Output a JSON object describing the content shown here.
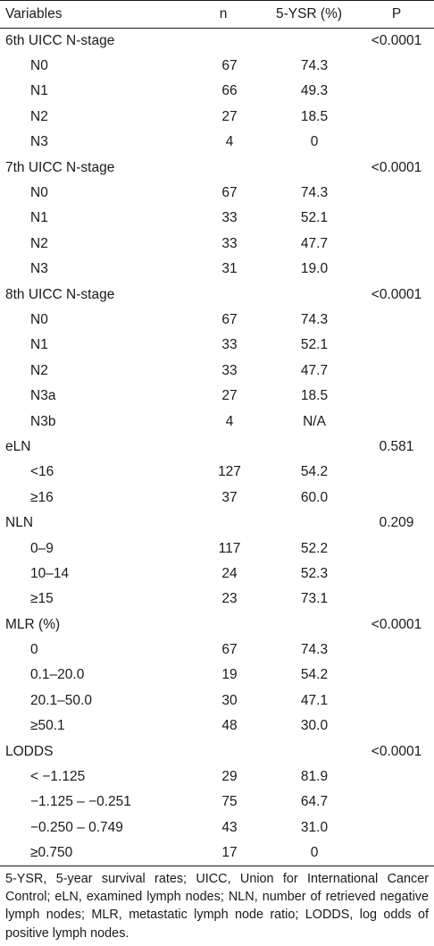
{
  "table": {
    "headers": [
      "Variables",
      "n",
      "5-YSR (%)",
      "P"
    ],
    "groups": [
      {
        "label": "6th UICC N-stage",
        "p": "<0.0001",
        "rows": [
          {
            "label": "N0",
            "n": "67",
            "ysr": "74.3"
          },
          {
            "label": "N1",
            "n": "66",
            "ysr": "49.3"
          },
          {
            "label": "N2",
            "n": "27",
            "ysr": "18.5"
          },
          {
            "label": "N3",
            "n": "4",
            "ysr": "0"
          }
        ]
      },
      {
        "label": "7th UICC N-stage",
        "p": "<0.0001",
        "rows": [
          {
            "label": "N0",
            "n": "67",
            "ysr": "74.3"
          },
          {
            "label": "N1",
            "n": "33",
            "ysr": "52.1"
          },
          {
            "label": "N2",
            "n": "33",
            "ysr": "47.7"
          },
          {
            "label": "N3",
            "n": "31",
            "ysr": "19.0"
          }
        ]
      },
      {
        "label": "8th UICC N-stage",
        "p": "<0.0001",
        "rows": [
          {
            "label": "N0",
            "n": "67",
            "ysr": "74.3"
          },
          {
            "label": "N1",
            "n": "33",
            "ysr": "52.1"
          },
          {
            "label": "N2",
            "n": "33",
            "ysr": "47.7"
          },
          {
            "label": "N3a",
            "n": "27",
            "ysr": "18.5"
          },
          {
            "label": "N3b",
            "n": "4",
            "ysr": "N/A"
          }
        ]
      },
      {
        "label": "eLN",
        "p": "0.581",
        "rows": [
          {
            "label": "<16",
            "n": "127",
            "ysr": "54.2"
          },
          {
            "label": "≥16",
            "n": "37",
            "ysr": "60.0"
          }
        ]
      },
      {
        "label": "NLN",
        "p": "0.209",
        "rows": [
          {
            "label": "0–9",
            "n": "117",
            "ysr": "52.2"
          },
          {
            "label": "10–14",
            "n": "24",
            "ysr": "52.3"
          },
          {
            "label": "≥15",
            "n": "23",
            "ysr": "73.1"
          }
        ]
      },
      {
        "label": "MLR (%)",
        "p": "<0.0001",
        "rows": [
          {
            "label": "0",
            "n": "67",
            "ysr": "74.3"
          },
          {
            "label": "0.1–20.0",
            "n": "19",
            "ysr": "54.2"
          },
          {
            "label": "20.1–50.0",
            "n": "30",
            "ysr": "47.1"
          },
          {
            "label": "≥50.1",
            "n": "48",
            "ysr": "30.0"
          }
        ]
      },
      {
        "label": "LODDS",
        "p": "<0.0001",
        "rows": [
          {
            "label": "< −1.125",
            "n": "29",
            "ysr": "81.9"
          },
          {
            "label": "−1.125 – −0.251",
            "n": "75",
            "ysr": "64.7"
          },
          {
            "label": "−0.250 – 0.749",
            "n": "43",
            "ysr": "31.0"
          },
          {
            "label": "≥0.750",
            "n": "17",
            "ysr": "0"
          }
        ]
      }
    ]
  },
  "footnote": "5-YSR, 5-year survival rates; UICC, Union for International Cancer Control; eLN, examined lymph nodes; NLN, number of retrieved negative lymph nodes; MLR, metastatic lymph node ratio; LODDS, log odds of positive lymph nodes."
}
